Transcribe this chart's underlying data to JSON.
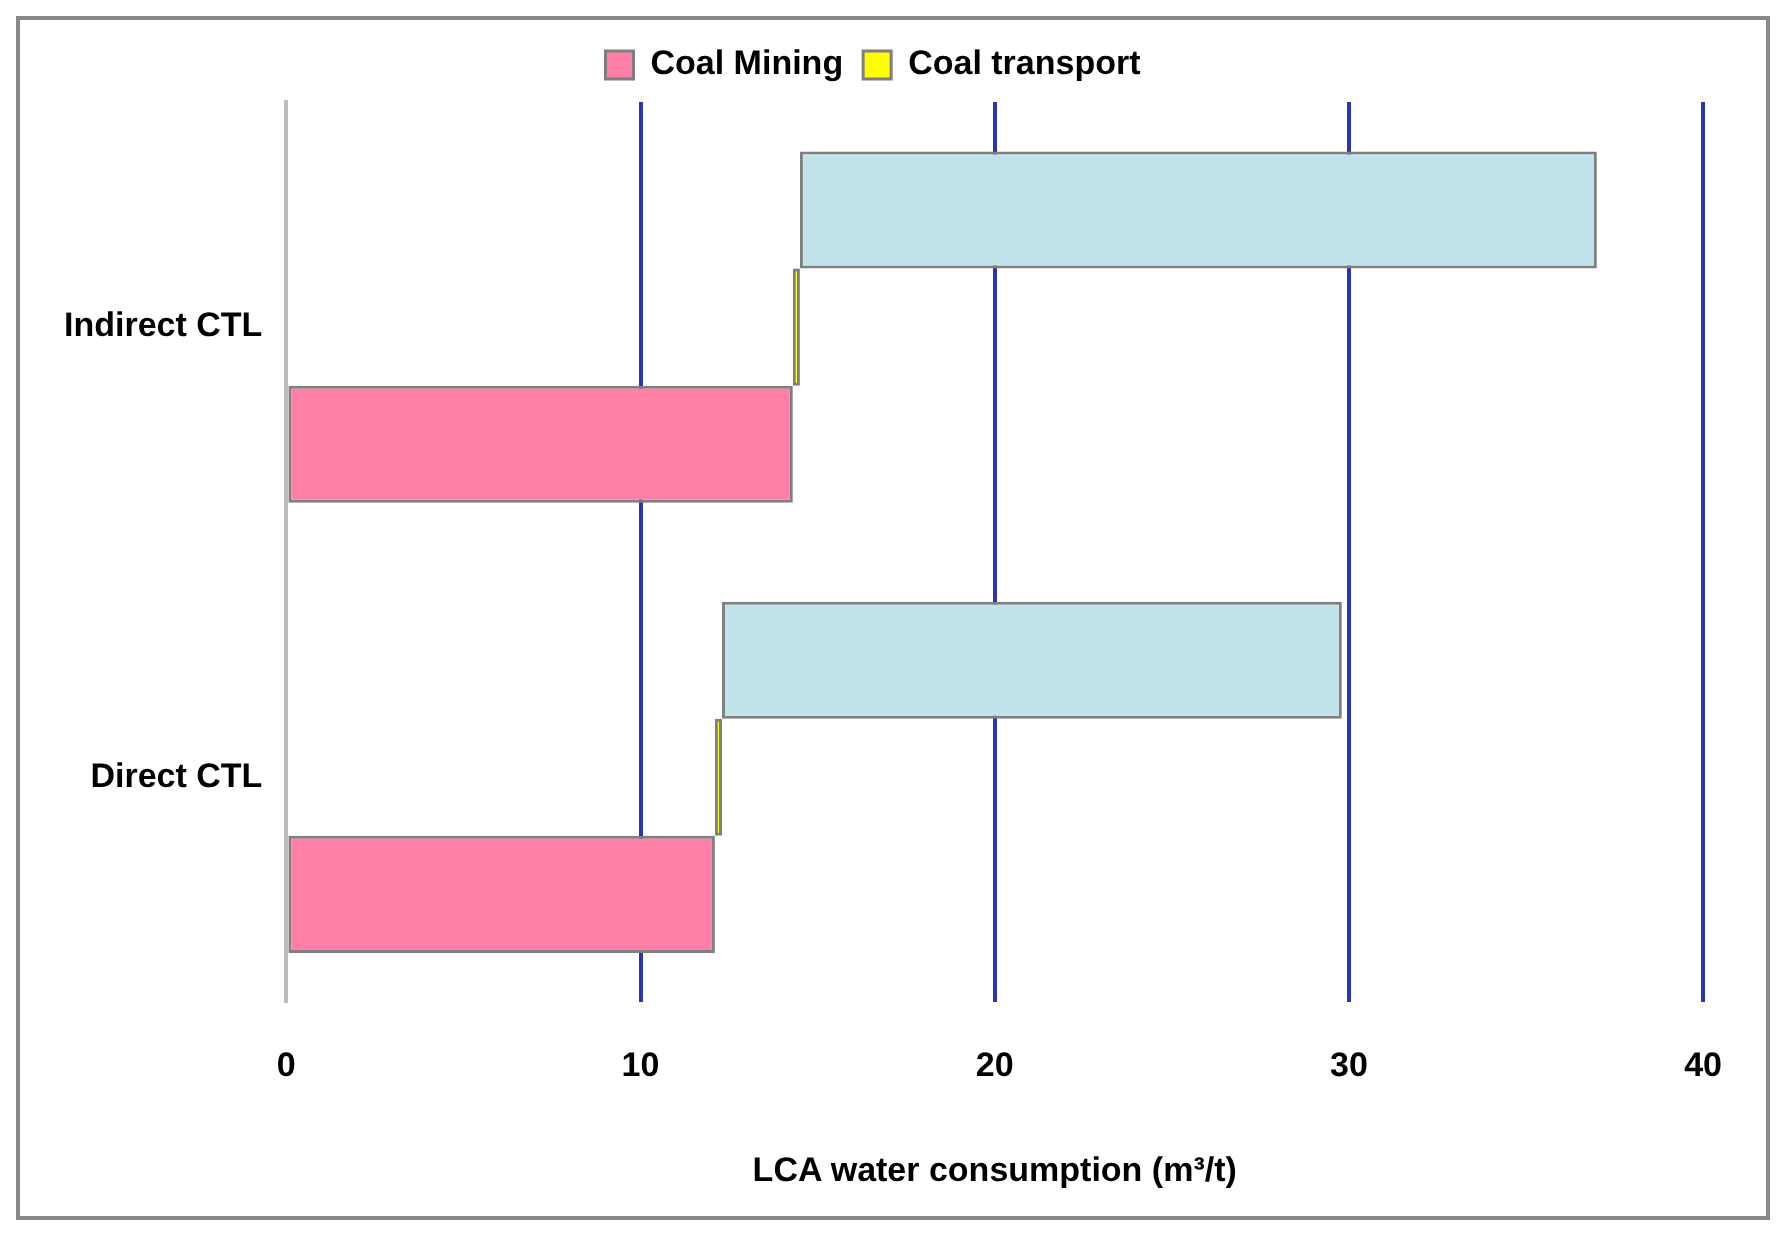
{
  "chart_data": {
    "type": "bar",
    "orientation": "horizontal",
    "categories": [
      "Indirect CTL",
      "Direct CTL"
    ],
    "series": [
      {
        "name": "Coal Mining",
        "color": "#ff7fa6",
        "values": [
          14.3,
          12.1
        ],
        "base": [
          0,
          0
        ]
      },
      {
        "name": "Coal transport",
        "color": "#ffff00",
        "values": [
          0.2,
          0.2
        ],
        "base": [
          14.3,
          12.1
        ]
      },
      {
        "color": "#c1e3ec",
        "values": [
          22.5,
          17.5
        ],
        "base": [
          14.5,
          12.3
        ]
      }
    ],
    "xlabel": "LCA water consumption (m³/t)",
    "xlim": [
      0,
      40
    ],
    "xticks": [
      0,
      10,
      20,
      30,
      40
    ],
    "grid": "x",
    "legend": "top"
  }
}
